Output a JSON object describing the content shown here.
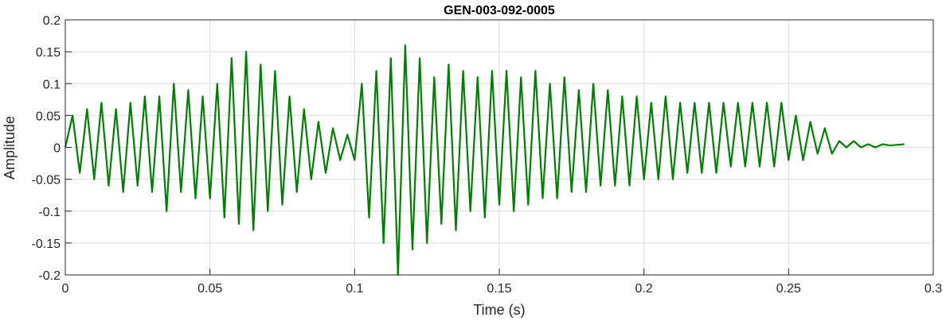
{
  "chart_data": {
    "type": "line",
    "title": "GEN-003-092-0005",
    "xlabel": "Time (s)",
    "ylabel": "Amplitude",
    "xlim": [
      0,
      0.3
    ],
    "ylim": [
      -0.2,
      0.2
    ],
    "xticks": [
      0,
      0.05,
      0.1,
      0.15,
      0.2,
      0.25,
      0.3
    ],
    "xtick_labels": [
      "0",
      "0.05",
      "0.1",
      "0.15",
      "0.2",
      "0.25",
      "0.3"
    ],
    "yticks": [
      -0.2,
      -0.15,
      -0.1,
      -0.05,
      0,
      0.05,
      0.1,
      0.15,
      0.2
    ],
    "ytick_labels": [
      "-0.2",
      "-0.15",
      "-0.1",
      "-0.05",
      "0",
      "0.05",
      "0.1",
      "0.15",
      "0.2"
    ],
    "grid": true,
    "color": "#008000",
    "series": [
      {
        "x": [
          0,
          0.0025,
          0.005,
          0.0075,
          0.01,
          0.0125,
          0.015,
          0.0175,
          0.02,
          0.0225,
          0.025,
          0.0275,
          0.03,
          0.0325,
          0.035,
          0.0375,
          0.04,
          0.0425,
          0.045,
          0.0475,
          0.05,
          0.0525,
          0.055,
          0.0575,
          0.06,
          0.0625,
          0.065,
          0.0675,
          0.07,
          0.0725,
          0.075,
          0.0775,
          0.08,
          0.0825,
          0.085,
          0.0875,
          0.09,
          0.0925,
          0.095,
          0.0975,
          0.1,
          0.1025,
          0.105,
          0.1075,
          0.11,
          0.1125,
          0.115,
          0.1175,
          0.12,
          0.1225,
          0.125,
          0.1275,
          0.13,
          0.1325,
          0.135,
          0.1375,
          0.14,
          0.1425,
          0.145,
          0.1475,
          0.15,
          0.1525,
          0.155,
          0.1575,
          0.16,
          0.1625,
          0.165,
          0.1675,
          0.17,
          0.1725,
          0.175,
          0.1775,
          0.18,
          0.1825,
          0.185,
          0.1875,
          0.19,
          0.1925,
          0.195,
          0.1975,
          0.2,
          0.2025,
          0.205,
          0.2075,
          0.21,
          0.2125,
          0.215,
          0.2175,
          0.22,
          0.2225,
          0.225,
          0.2275,
          0.23,
          0.2325,
          0.235,
          0.2375,
          0.24,
          0.2425,
          0.245,
          0.2475,
          0.25,
          0.2525,
          0.255,
          0.2575,
          0.26,
          0.2625,
          0.265,
          0.2675,
          0.27,
          0.2725,
          0.275,
          0.2775,
          0.28,
          0.2825,
          0.285,
          0.2875,
          0.29
        ],
        "y": [
          0,
          0.05,
          -0.04,
          0.06,
          -0.05,
          0.07,
          -0.06,
          0.06,
          -0.07,
          0.07,
          -0.06,
          0.08,
          -0.07,
          0.08,
          -0.1,
          0.1,
          -0.07,
          0.09,
          -0.08,
          0.08,
          -0.08,
          0.1,
          -0.11,
          0.14,
          -0.12,
          0.15,
          -0.13,
          0.13,
          -0.1,
          0.12,
          -0.09,
          0.08,
          -0.07,
          0.06,
          -0.05,
          0.04,
          -0.04,
          0.03,
          -0.02,
          0.02,
          -0.02,
          0.1,
          -0.11,
          0.12,
          -0.15,
          0.14,
          -0.2,
          0.16,
          -0.16,
          0.14,
          -0.15,
          0.11,
          -0.12,
          0.13,
          -0.13,
          0.12,
          -0.1,
          0.11,
          -0.11,
          0.12,
          -0.09,
          0.12,
          -0.1,
          0.11,
          -0.09,
          0.12,
          -0.08,
          0.1,
          -0.08,
          0.11,
          -0.07,
          0.09,
          -0.07,
          0.1,
          -0.06,
          0.09,
          -0.06,
          0.08,
          -0.06,
          0.08,
          -0.05,
          0.07,
          -0.05,
          0.08,
          -0.05,
          0.07,
          -0.04,
          0.07,
          -0.04,
          0.07,
          -0.04,
          0.07,
          -0.03,
          0.07,
          -0.03,
          0.07,
          -0.03,
          0.07,
          -0.03,
          0.07,
          -0.02,
          0.05,
          -0.02,
          0.04,
          -0.01,
          0.03,
          -0.01,
          0.01,
          0,
          0.01,
          0,
          0.005,
          0,
          0.005,
          0.003,
          0.004,
          0.005
        ]
      }
    ]
  }
}
